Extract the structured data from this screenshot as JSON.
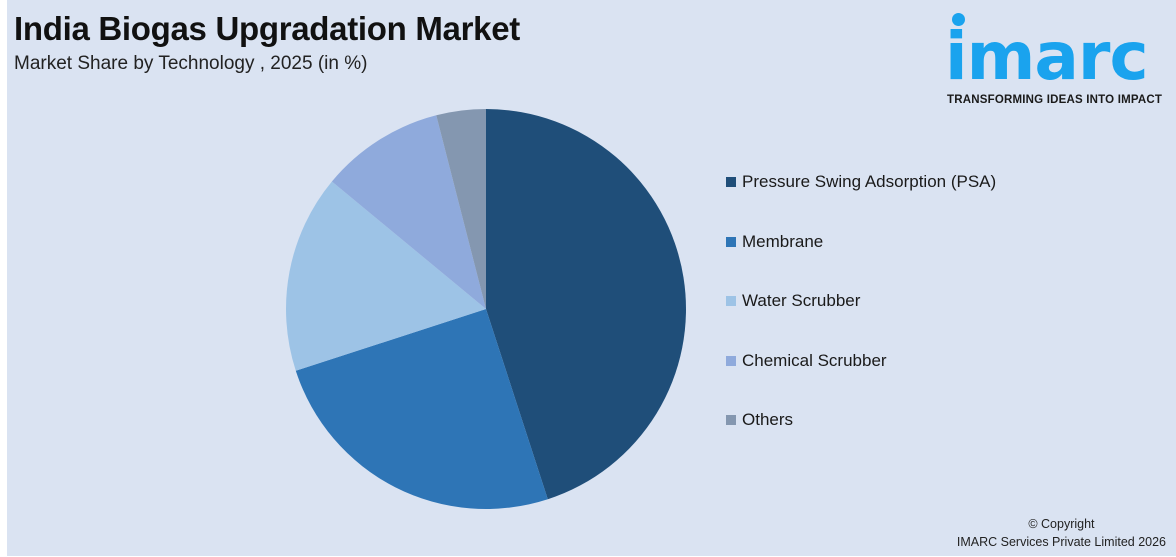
{
  "header": {
    "title": "India Biogas Upgradation Market",
    "subtitle": "Market Share by Technology , 2025 (in %)"
  },
  "logo": {
    "word": "imarc",
    "tagline": "TRANSFORMING IDEAS INTO IMPACT",
    "color": "#1aa3ee"
  },
  "legend": {
    "items": [
      {
        "label": "Pressure Swing Adsorption (PSA)",
        "color": "#1f4e79"
      },
      {
        "label": "Membrane",
        "color": "#2e75b6"
      },
      {
        "label": "Water Scrubber",
        "color": "#9dc3e6"
      },
      {
        "label": "Chemical Scrubber",
        "color": "#8faadc"
      },
      {
        "label": "Others",
        "color": "#8497b0"
      }
    ]
  },
  "footer": {
    "copyright": "© Copyright",
    "company": "IMARC Services Private Limited 2026"
  },
  "chart_data": {
    "type": "pie",
    "title": "India Biogas Upgradation Market",
    "subtitle": "Market Share by Technology , 2025 (in %)",
    "categories": [
      "Pressure Swing Adsorption (PSA)",
      "Membrane",
      "Water Scrubber",
      "Chemical Scrubber",
      "Others"
    ],
    "values": [
      45,
      25,
      16,
      10,
      4
    ],
    "colors": [
      "#1f4e79",
      "#2e75b6",
      "#9dc3e6",
      "#8faadc",
      "#8497b0"
    ],
    "start_angle": "12 o'clock, clockwise",
    "legend_position": "right",
    "data_labels": false
  }
}
